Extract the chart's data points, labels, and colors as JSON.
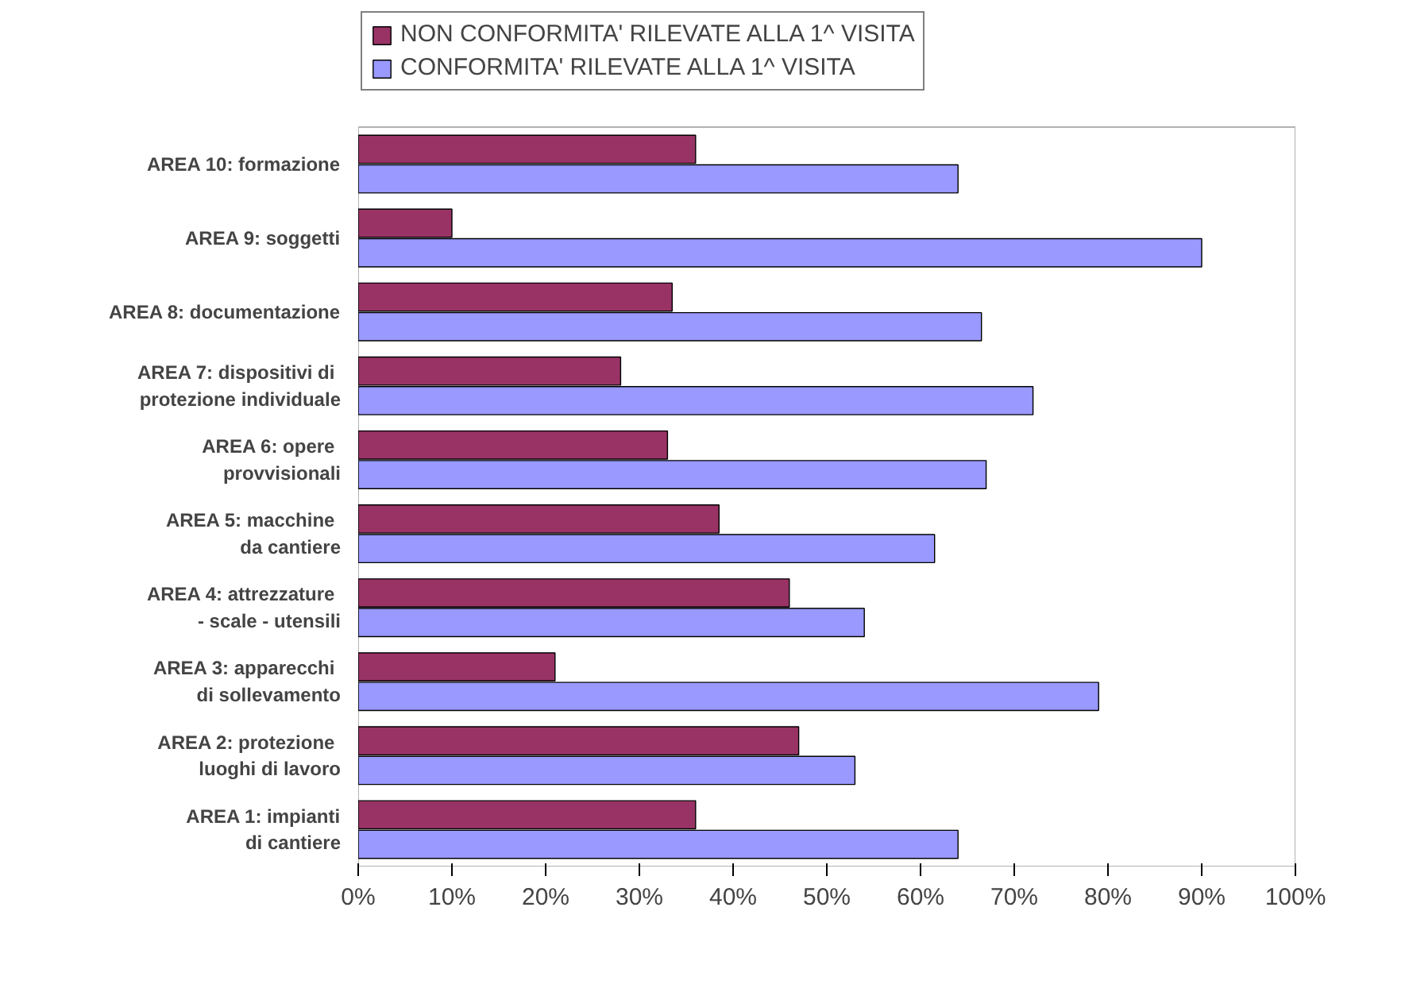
{
  "chart_data": {
    "type": "bar",
    "orientation": "horizontal",
    "categories": [
      "AREA 10: formazione",
      "AREA 9: soggetti",
      "AREA 8: documentazione",
      "AREA 7:  dispositivi di\nprotezione individuale",
      "AREA 6:  opere\nprovvisionali",
      "AREA 5:  macchine\nda cantiere",
      "AREA 4:  attrezzature\n- scale - utensili",
      "AREA 3:  apparecchi\ndi sollevamento",
      "AREA 2:  protezione\nluoghi di lavoro",
      "AREA 1: impianti\ndi cantiere"
    ],
    "series": [
      {
        "name": "NON CONFORMITA' RILEVATE ALLA 1^ VISITA",
        "color": "#993366",
        "values": [
          36,
          10,
          33.5,
          28,
          33,
          38.5,
          46,
          21,
          47,
          36
        ]
      },
      {
        "name": "CONFORMITA' RILEVATE ALLA 1^ VISITA",
        "color": "#9999ff",
        "values": [
          64,
          90,
          66.5,
          72,
          67,
          61.5,
          54,
          79,
          53,
          64
        ]
      }
    ],
    "xlim": [
      0,
      100
    ],
    "xticks": [
      {
        "value": 0,
        "label": "0%"
      },
      {
        "value": 10,
        "label": "10%"
      },
      {
        "value": 20,
        "label": "20%"
      },
      {
        "value": 30,
        "label": "30%"
      },
      {
        "value": 40,
        "label": "40%"
      },
      {
        "value": 50,
        "label": "50%"
      },
      {
        "value": 60,
        "label": "60%"
      },
      {
        "value": 70,
        "label": "70%"
      },
      {
        "value": 80,
        "label": "80%"
      },
      {
        "value": 90,
        "label": "90%"
      },
      {
        "value": 100,
        "label": "100%"
      }
    ],
    "grid": false,
    "legend": "top"
  }
}
